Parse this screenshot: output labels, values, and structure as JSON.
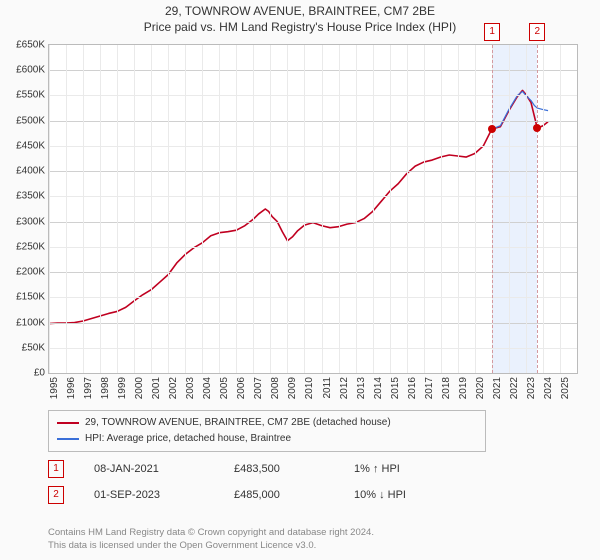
{
  "title_line1": "29, TOWNROW AVENUE, BRAINTREE, CM7 2BE",
  "title_line2": "Price paid vs. HM Land Registry's House Price Index (HPI)",
  "chart": {
    "type": "line",
    "background_color": "#ffffff",
    "border_color": "#bbbbbb",
    "grid_major_color": "#d0d0d0",
    "grid_minor_color": "#eaeaea",
    "xlim": [
      1995,
      2026
    ],
    "ylim": [
      0,
      650000
    ],
    "ytick_step": 50000,
    "yticks": [
      0,
      50000,
      100000,
      150000,
      200000,
      250000,
      300000,
      350000,
      400000,
      450000,
      500000,
      550000,
      600000,
      650000
    ],
    "ytick_labels": [
      "£0",
      "£50K",
      "£100K",
      "£150K",
      "£200K",
      "£250K",
      "£300K",
      "£350K",
      "£400K",
      "£450K",
      "£500K",
      "£550K",
      "£600K",
      "£650K"
    ],
    "xticks": [
      1995,
      1996,
      1997,
      1998,
      1999,
      2000,
      2001,
      2002,
      2003,
      2004,
      2005,
      2006,
      2007,
      2008,
      2009,
      2010,
      2011,
      2012,
      2013,
      2014,
      2015,
      2016,
      2017,
      2018,
      2019,
      2020,
      2021,
      2022,
      2023,
      2024,
      2025
    ],
    "shaded_band": {
      "from": 2021.02,
      "to": 2023.67,
      "fill": "#d8e6fb",
      "opacity": 0.55
    },
    "axis_fontsize": 10,
    "title_fontsize": 12,
    "series": [
      {
        "name": "29, TOWNROW AVENUE, BRAINTREE, CM7 2BE (detached house)",
        "color": "#c00020",
        "width": 1.6,
        "data": [
          [
            1995.0,
            98000
          ],
          [
            1995.5,
            99000
          ],
          [
            1996.0,
            99000
          ],
          [
            1996.5,
            100000
          ],
          [
            1997.0,
            103000
          ],
          [
            1997.5,
            108000
          ],
          [
            1998.0,
            113000
          ],
          [
            1998.5,
            118000
          ],
          [
            1999.0,
            122000
          ],
          [
            1999.5,
            130000
          ],
          [
            2000.0,
            143000
          ],
          [
            2000.5,
            155000
          ],
          [
            2001.0,
            165000
          ],
          [
            2001.5,
            180000
          ],
          [
            2002.0,
            195000
          ],
          [
            2002.5,
            218000
          ],
          [
            2003.0,
            235000
          ],
          [
            2003.5,
            248000
          ],
          [
            2004.0,
            258000
          ],
          [
            2004.5,
            272000
          ],
          [
            2005.0,
            278000
          ],
          [
            2005.5,
            280000
          ],
          [
            2006.0,
            283000
          ],
          [
            2006.5,
            292000
          ],
          [
            2007.0,
            305000
          ],
          [
            2007.3,
            315000
          ],
          [
            2007.7,
            325000
          ],
          [
            2007.9,
            320000
          ],
          [
            2008.1,
            310000
          ],
          [
            2008.4,
            300000
          ],
          [
            2008.7,
            280000
          ],
          [
            2009.0,
            262000
          ],
          [
            2009.3,
            270000
          ],
          [
            2009.6,
            282000
          ],
          [
            2010.0,
            293000
          ],
          [
            2010.5,
            298000
          ],
          [
            2011.0,
            292000
          ],
          [
            2011.5,
            288000
          ],
          [
            2012.0,
            290000
          ],
          [
            2012.5,
            295000
          ],
          [
            2013.0,
            298000
          ],
          [
            2013.5,
            306000
          ],
          [
            2014.0,
            320000
          ],
          [
            2014.5,
            340000
          ],
          [
            2015.0,
            360000
          ],
          [
            2015.5,
            375000
          ],
          [
            2016.0,
            395000
          ],
          [
            2016.5,
            410000
          ],
          [
            2017.0,
            418000
          ],
          [
            2017.5,
            422000
          ],
          [
            2018.0,
            428000
          ],
          [
            2018.5,
            432000
          ],
          [
            2019.0,
            430000
          ],
          [
            2019.5,
            428000
          ],
          [
            2020.0,
            435000
          ],
          [
            2020.5,
            450000
          ],
          [
            2021.0,
            483500
          ],
          [
            2021.5,
            488000
          ],
          [
            2022.0,
            520000
          ],
          [
            2022.5,
            548000
          ],
          [
            2022.8,
            560000
          ],
          [
            2023.0,
            552000
          ],
          [
            2023.3,
            536000
          ],
          [
            2023.67,
            485000
          ],
          [
            2024.0,
            490000
          ],
          [
            2024.3,
            498000
          ]
        ]
      },
      {
        "name": "HPI: Average price, detached house, Braintree",
        "color": "#3a6fd8",
        "width": 1.2,
        "data": [
          [
            2021.02,
            483500
          ],
          [
            2021.5,
            490000
          ],
          [
            2022.0,
            522000
          ],
          [
            2022.5,
            550000
          ],
          [
            2022.8,
            558000
          ],
          [
            2023.0,
            550000
          ],
          [
            2023.3,
            540000
          ],
          [
            2023.5,
            530000
          ],
          [
            2023.67,
            525000
          ],
          [
            2024.0,
            522000
          ],
          [
            2024.3,
            520000
          ]
        ]
      }
    ],
    "markers": [
      {
        "id": 1,
        "x": 2021.02,
        "y": 483500,
        "color": "#cc0000",
        "dash_color": "#d49aa0"
      },
      {
        "id": 2,
        "x": 2023.67,
        "y": 485000,
        "color": "#cc0000",
        "dash_color": "#d49aa0"
      }
    ]
  },
  "legend": {
    "rows": [
      {
        "color": "#c00020",
        "label": "29, TOWNROW AVENUE, BRAINTREE, CM7 2BE (detached house)"
      },
      {
        "color": "#3a6fd8",
        "label": "HPI: Average price, detached house, Braintree"
      }
    ]
  },
  "marker_rows": [
    {
      "id": 1,
      "date": "08-JAN-2021",
      "price": "£483,500",
      "delta": "1% ↑ HPI"
    },
    {
      "id": 2,
      "date": "01-SEP-2023",
      "price": "£485,000",
      "delta": "10% ↓ HPI"
    }
  ],
  "licence_line1": "Contains HM Land Registry data © Crown copyright and database right 2024.",
  "licence_line2": "This data is licensed under the Open Government Licence v3.0.",
  "flag_border_color": "#cc0000"
}
